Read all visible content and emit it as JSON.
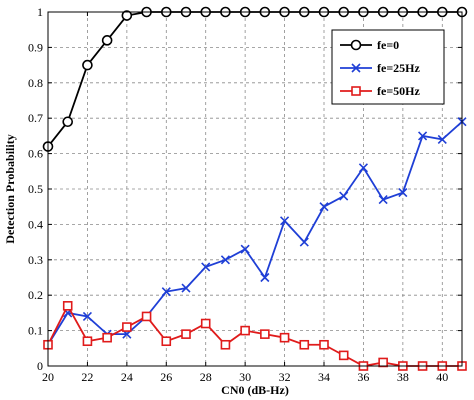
{
  "chart_data": {
    "type": "line",
    "xlabel": "CN0 (dB-Hz)",
    "ylabel": "Detection Probability",
    "xlim": [
      20,
      41
    ],
    "ylim": [
      0,
      1
    ],
    "x_ticks": [
      20,
      22,
      24,
      26,
      28,
      30,
      32,
      34,
      36,
      38,
      40
    ],
    "y_ticks": [
      0,
      0.1,
      0.2,
      0.3,
      0.4,
      0.5,
      0.6,
      0.7,
      0.8,
      0.9,
      1
    ],
    "grid": true,
    "legend_position": "top-right",
    "x": [
      20,
      21,
      22,
      23,
      24,
      25,
      26,
      27,
      28,
      29,
      30,
      31,
      32,
      33,
      34,
      35,
      36,
      37,
      38,
      39,
      40,
      41
    ],
    "series": [
      {
        "name": "fe=0",
        "color": "#000000",
        "marker": "circle",
        "values": [
          0.62,
          0.69,
          0.85,
          0.92,
          0.99,
          1,
          1,
          1,
          1,
          1,
          1,
          1,
          1,
          1,
          1,
          1,
          1,
          1,
          1,
          1,
          1,
          1
        ]
      },
      {
        "name": "fe=25Hz",
        "color": "#1f3fd6",
        "marker": "x",
        "values": [
          0.06,
          0.15,
          0.14,
          0.09,
          0.09,
          0.14,
          0.21,
          0.22,
          0.28,
          0.3,
          0.33,
          0.25,
          0.41,
          0.35,
          0.45,
          0.48,
          0.56,
          0.47,
          0.49,
          0.65,
          0.64,
          0.69
        ]
      },
      {
        "name": "fe=50Hz",
        "color": "#e01b1b",
        "marker": "square",
        "values": [
          0.06,
          0.17,
          0.07,
          0.08,
          0.11,
          0.14,
          0.07,
          0.09,
          0.12,
          0.06,
          0.1,
          0.09,
          0.08,
          0.06,
          0.06,
          0.03,
          0,
          0.01,
          0,
          0,
          0,
          0
        ]
      }
    ]
  }
}
